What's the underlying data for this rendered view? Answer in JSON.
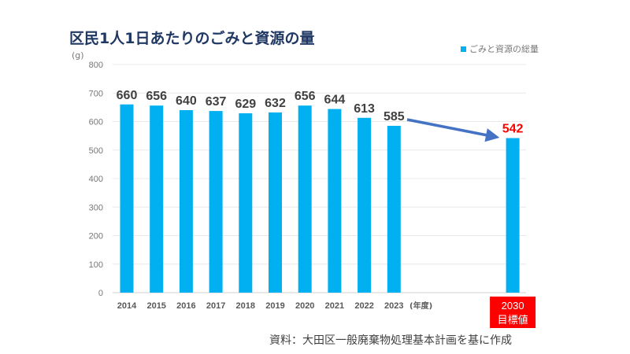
{
  "chart_data": {
    "type": "bar",
    "title": "区民1人1日あたりのごみと資源の量",
    "ylabel": "(g)",
    "xlabel": "(年度)",
    "categories": [
      "2014",
      "2015",
      "2016",
      "2017",
      "2018",
      "2019",
      "2020",
      "2021",
      "2022",
      "2023",
      "2030"
    ],
    "target_label": "2030\n目標値",
    "target_label_lines": [
      "2030",
      "目標値"
    ],
    "series": [
      {
        "name": "ごみと資源の総量",
        "values": [
          660,
          656,
          640,
          637,
          629,
          632,
          656,
          644,
          613,
          585,
          542
        ]
      }
    ],
    "ylim": [
      0,
      800
    ],
    "yticks": [
      0,
      100,
      200,
      300,
      400,
      500,
      600,
      700,
      800
    ],
    "grid": true,
    "legend": "top-right",
    "annotation": "arrow from 2023 (585) to 2030 target (542)",
    "source": "資料：大田区一般廃棄物処理基本計画を基に作成",
    "colors": {
      "bar": "#00b0f0",
      "title": "#1f3864",
      "target": "#ff0000",
      "arrow": "#4472c4",
      "label": "#404040"
    }
  }
}
